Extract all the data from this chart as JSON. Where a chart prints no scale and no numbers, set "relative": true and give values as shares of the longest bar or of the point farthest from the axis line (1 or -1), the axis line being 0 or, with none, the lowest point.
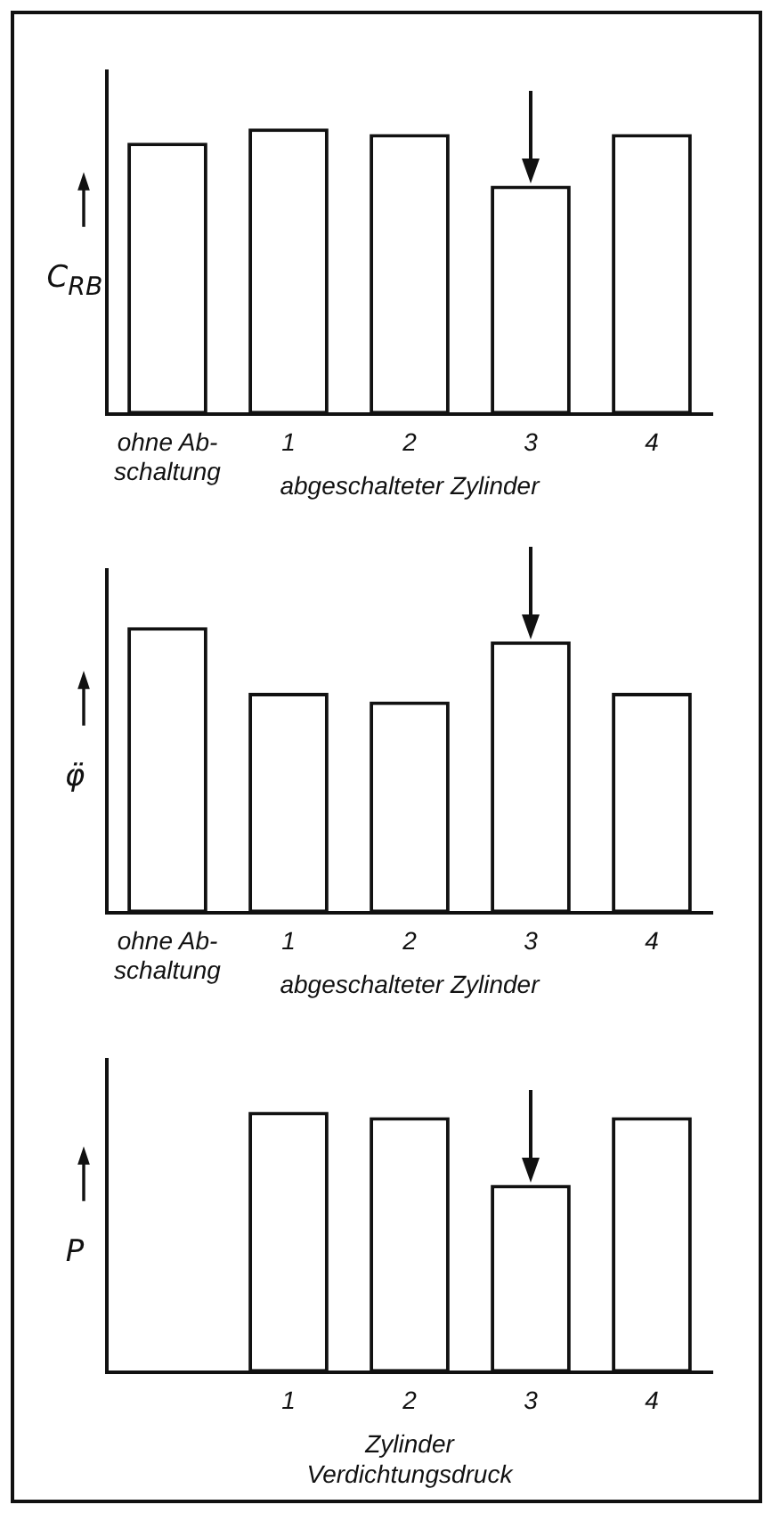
{
  "chart_data": [
    {
      "type": "bar",
      "relative": true,
      "ylabel": "C$_{RB}$",
      "xlabel": "abgeschalteter Zylinder",
      "categories": [
        "ohne Ab-\nschaltung",
        "1",
        "2",
        "3",
        "4"
      ],
      "values": [
        0.95,
        1,
        0.98,
        0.8,
        0.98
      ],
      "color": "#ffffff",
      "grid": false,
      "legend": false
    },
    {
      "type": "bar",
      "relative": true,
      "ylabel": "φ̈",
      "xlabel": "abgeschalteter Zylinder",
      "categories": [
        "ohne Ab-\nschaltung",
        "1",
        "2",
        "3",
        "4"
      ],
      "values": [
        1,
        0.77,
        0.74,
        0.95,
        0.77
      ],
      "color": "#ffffff",
      "grid": false,
      "legend": false
    },
    {
      "type": "bar",
      "relative": true,
      "ylabel": "P",
      "xlabel": "Zylinder\nVerdichtungsdruck",
      "categories": [
        null,
        "1",
        "2",
        "3",
        "4"
      ],
      "values": [
        null,
        1,
        0.98,
        0.72,
        0.98
      ],
      "color": "#ffffff",
      "grid": false,
      "legend": false
    }
  ]
}
